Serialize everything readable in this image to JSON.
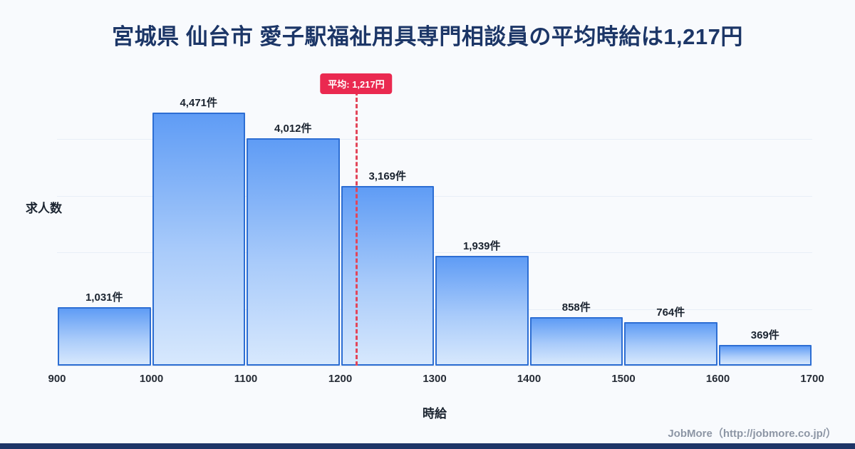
{
  "page": {
    "title": "宮城県 仙台市 愛子駅福祉用具専門相談員の平均時給は1,217円",
    "footer": "JobMore（http://jobmore.co.jp/）"
  },
  "chart_data": {
    "type": "bar",
    "title": "宮城県 仙台市 愛子駅福祉用具専門相談員の平均時給は1,217円",
    "xlabel": "時給",
    "ylabel": "求人数",
    "bin_edges": [
      900,
      1000,
      1100,
      1200,
      1300,
      1400,
      1500,
      1600,
      1700
    ],
    "categories": [
      "900-1000",
      "1000-1100",
      "1100-1200",
      "1200-1300",
      "1300-1400",
      "1400-1500",
      "1500-1600",
      "1600-1700"
    ],
    "values": [
      1031,
      4471,
      4012,
      3169,
      1939,
      858,
      764,
      369
    ],
    "labels": [
      "1,031件",
      "4,471件",
      "4,012件",
      "3,169件",
      "1,939件",
      "858件",
      "764件",
      "369件"
    ],
    "x_ticks": [
      "900",
      "1000",
      "1100",
      "1200",
      "1300",
      "1400",
      "1500",
      "1600",
      "1700"
    ],
    "xlim": [
      900,
      1700
    ],
    "ylim": [
      0,
      4700
    ],
    "grid_values": [
      1000,
      2000,
      3000,
      4000
    ],
    "legend": "none",
    "average": {
      "value": 1217,
      "label": "平均: 1,217円"
    },
    "colors": {
      "title": "#1c3667",
      "bar_top": "#5f9cf5",
      "bar_bottom": "#d7e8fd",
      "bar_border": "#2d6ed3",
      "average_red": "#ea2950",
      "background": "#f8fafd",
      "bottom_strip": "#1e3567"
    }
  }
}
